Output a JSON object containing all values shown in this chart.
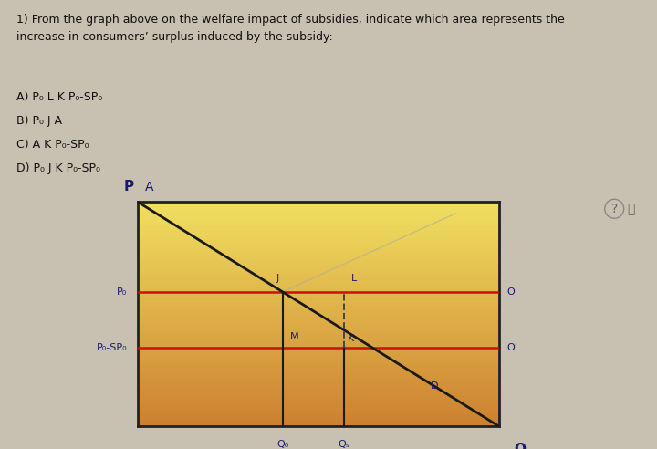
{
  "title_text": "1) From the graph above on the welfare impact of subsidies, indicate which area represents the\nincrease in consumers’ surplus induced by the subsidy:",
  "options": [
    "A) P₀ L K P₀-SP₀",
    "B) P₀ J A",
    "C) A K P₀-SP₀",
    "D) P₀ J K P₀-SP₀"
  ],
  "fig_bg": "#c8c0b0",
  "text_bg": "#d8d2c4",
  "chart_color_top": "#f0e060",
  "chart_color_bottom": "#cc8030",
  "Po": 0.6,
  "Po_SPo": 0.35,
  "Qo": 0.4,
  "Qs": 0.57,
  "A_price": 1.0,
  "border_color": "#222222",
  "line_color": "#1a1a1a",
  "label_color": "#1a1a6e",
  "hline_color": "#cc1100",
  "dashed_color": "#444444",
  "supply_faint_color": "#aaaaaa",
  "fs_text": 9,
  "fs_label": 8,
  "fs_axis_title": 10
}
